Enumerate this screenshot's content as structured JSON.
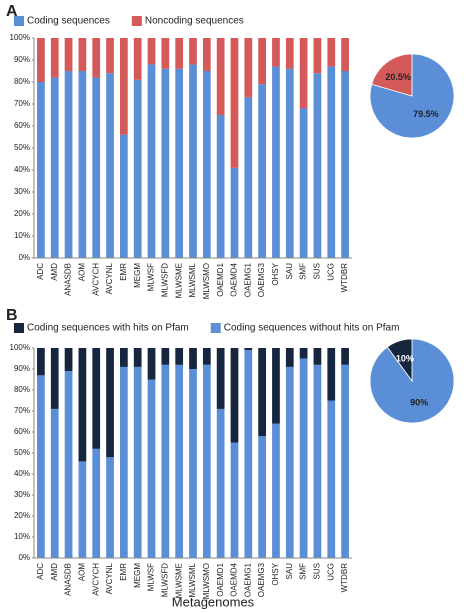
{
  "chart_data": [
    {
      "type": "bar",
      "panel": "A",
      "stacked": true,
      "grid": false,
      "categories": [
        "ADC",
        "AMD",
        "ANASDB",
        "AOM",
        "AVCYCH",
        "AVCYNL",
        "EMR",
        "MEGM",
        "MLWSF",
        "MLWSFD",
        "MLWSME",
        "MLWSML",
        "MLWSMO",
        "OAEMD1",
        "OAEMD4",
        "OAEMG1",
        "OAEMG3",
        "OHSY",
        "SAU",
        "SMF",
        "SUS",
        "UCG",
        "WTDBR"
      ],
      "series": [
        {
          "name": "Coding sequences",
          "color": "#5a8fd8",
          "values": [
            80,
            82,
            85,
            85,
            82,
            84,
            56,
            81,
            88,
            86,
            86,
            88,
            85,
            65,
            41,
            73,
            79,
            87,
            86,
            68,
            84,
            87,
            85
          ]
        },
        {
          "name": "Noncoding sequences",
          "color": "#d45a5a",
          "values": [
            20,
            18,
            15,
            15,
            18,
            16,
            44,
            19,
            12,
            14,
            14,
            12,
            15,
            35,
            59,
            27,
            21,
            13,
            14,
            32,
            16,
            13,
            15
          ]
        }
      ],
      "ylim": [
        0,
        100
      ],
      "yticks": [
        {
          "value": 0,
          "label": "0%"
        },
        {
          "value": 10,
          "label": "10%"
        },
        {
          "value": 20,
          "label": "20%"
        },
        {
          "value": 30,
          "label": "30%"
        },
        {
          "value": 40,
          "label": "40%"
        },
        {
          "value": 50,
          "label": "50%"
        },
        {
          "value": 60,
          "label": "60%"
        },
        {
          "value": 70,
          "label": "70%"
        },
        {
          "value": 80,
          "label": "80%"
        },
        {
          "value": 90,
          "label": "90%"
        },
        {
          "value": 100,
          "label": "100%"
        }
      ]
    },
    {
      "type": "pie",
      "values": [
        79.5,
        20.5
      ],
      "value_labels": [
        "79.5%",
        "20.5%"
      ],
      "colors": [
        "#5a8fd8",
        "#d45a5a"
      ]
    },
    {
      "type": "bar",
      "panel": "B",
      "stacked": true,
      "stack_order": "reverse",
      "grid": false,
      "xlabel": "Metagenomes",
      "categories": [
        "ADC",
        "AMD",
        "ANASDB",
        "AOM",
        "AVCYCH",
        "AVCYNL",
        "EMR",
        "MEGM",
        "MLWSF",
        "MLWSFD",
        "MLWSME",
        "MLWSML",
        "MLWSMO",
        "OAEMD1",
        "OAEMD4",
        "OAEMG1",
        "OAEMG3",
        "OHSY",
        "SAU",
        "SMF",
        "SUS",
        "UCG",
        "WTDBR"
      ],
      "series": [
        {
          "name": "Coding sequences with hits on Pfam",
          "color": "#17263f",
          "values": [
            13,
            29,
            11,
            54,
            48,
            52,
            9,
            9,
            15,
            8,
            8,
            10,
            8,
            29,
            45,
            1,
            42,
            36,
            9,
            5,
            8,
            25,
            8
          ]
        },
        {
          "name": "Coding sequences without hits on Pfam",
          "color": "#5a8fd8",
          "values": [
            87,
            71,
            89,
            46,
            52,
            48,
            91,
            91,
            85,
            92,
            92,
            90,
            92,
            71,
            55,
            99,
            58,
            64,
            91,
            95,
            92,
            75,
            92
          ]
        }
      ],
      "ylim": [
        0,
        100
      ],
      "yticks": [
        {
          "value": 0,
          "label": "0%"
        },
        {
          "value": 10,
          "label": "10%"
        },
        {
          "value": 20,
          "label": "20%"
        },
        {
          "value": 30,
          "label": "30%"
        },
        {
          "value": 40,
          "label": "40%"
        },
        {
          "value": 50,
          "label": "50%"
        },
        {
          "value": 60,
          "label": "60%"
        },
        {
          "value": 70,
          "label": "70%"
        },
        {
          "value": 80,
          "label": "80%"
        },
        {
          "value": 90,
          "label": "90%"
        },
        {
          "value": 100,
          "label": "100%"
        }
      ]
    },
    {
      "type": "pie",
      "values": [
        90,
        10
      ],
      "value_labels": [
        "90%",
        "10%"
      ],
      "colors": [
        "#5a8fd8",
        "#17263f"
      ],
      "label_color": [
        "#222",
        "#fff"
      ]
    }
  ]
}
